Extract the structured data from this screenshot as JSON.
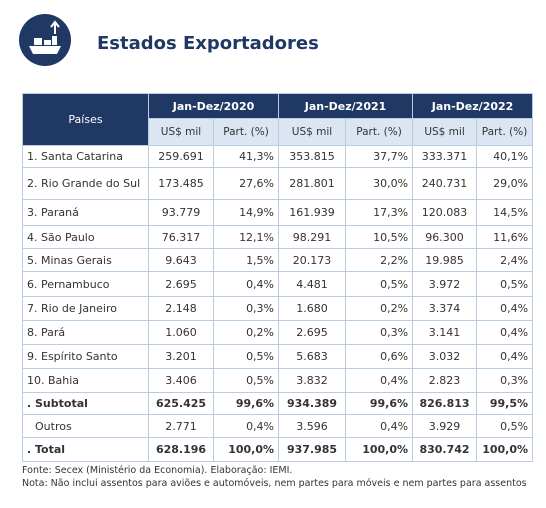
{
  "header": {
    "title": "Estados Exportadores"
  },
  "table": {
    "corner": "Países",
    "periods": [
      "Jan-Dez/2020",
      "Jan-Dez/2021",
      "Jan-Dez/2022"
    ],
    "value_header": "US$ mil",
    "share_header": "Part. (%)",
    "rows": [
      [
        "1. Santa Catarina",
        "259.691",
        "41,3%",
        "353.815",
        "37,7%",
        "333.371",
        "40,1%"
      ],
      [
        "2. Rio Grande do Sul",
        "173.485",
        "27,6%",
        "281.801",
        "30,0%",
        "240.731",
        "29,0%"
      ],
      [
        "3. Paraná",
        "93.779",
        "14,9%",
        "161.939",
        "17,3%",
        "120.083",
        "14,5%"
      ],
      [
        "4. São Paulo",
        "76.317",
        "12,1%",
        "98.291",
        "10,5%",
        "96.300",
        "11,6%"
      ],
      [
        "5. Minas Gerais",
        "9.643",
        "1,5%",
        "20.173",
        "2,2%",
        "19.985",
        "2,4%"
      ],
      [
        "6. Pernambuco",
        "2.695",
        "0,4%",
        "4.481",
        "0,5%",
        "3.972",
        "0,5%"
      ],
      [
        "7. Rio de Janeiro",
        "2.148",
        "0,3%",
        "1.680",
        "0,2%",
        "3.374",
        "0,4%"
      ],
      [
        "8. Pará",
        "1.060",
        "0,2%",
        "2.695",
        "0,3%",
        "3.141",
        "0,4%"
      ],
      [
        "9. Espírito Santo",
        "3.201",
        "0,5%",
        "5.683",
        "0,6%",
        "3.032",
        "0,4%"
      ],
      [
        "10. Bahia",
        "3.406",
        "0,5%",
        "3.832",
        "0,4%",
        "2.823",
        "0,3%"
      ],
      [
        ". Subtotal",
        "625.425",
        "99,6%",
        "934.389",
        "99,6%",
        "826.813",
        "99,5%"
      ],
      [
        "Outros",
        "2.771",
        "0,4%",
        "3.596",
        "0,4%",
        "3.929",
        "0,5%"
      ],
      [
        ". Total",
        "628.196",
        "100,0%",
        "937.985",
        "100,0%",
        "830.742",
        "100,0%"
      ]
    ]
  },
  "footer": {
    "source": "Fonte: Secex (Ministério da Economia). Elaboração: IEMI.",
    "note": "Nota: Não inclui assentos para aviões e automóveis, nem partes para móveis e nem partes para assentos"
  }
}
